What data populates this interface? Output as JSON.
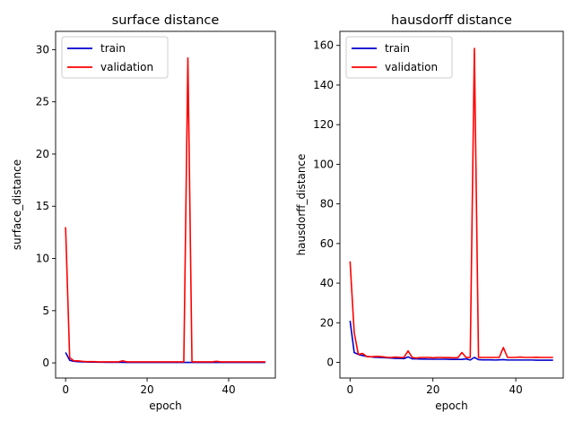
{
  "chart_data": [
    {
      "type": "line",
      "title": "surface distance",
      "xlabel": "epoch",
      "ylabel": "surface_distance",
      "xlim": [
        -2.45,
        51.45
      ],
      "ylim": [
        -1.45,
        31.75
      ],
      "xticks": [
        0,
        20,
        40
      ],
      "yticks": [
        0,
        5,
        10,
        15,
        20,
        25,
        30
      ],
      "legend": "top-left",
      "grid": false,
      "series": [
        {
          "name": "train",
          "color": "#0000cc",
          "x": [
            0,
            1,
            2,
            3,
            4,
            5,
            6,
            7,
            8,
            9,
            10,
            11,
            12,
            13,
            14,
            15,
            16,
            17,
            18,
            19,
            20,
            21,
            22,
            23,
            24,
            25,
            26,
            27,
            28,
            29,
            30,
            31,
            32,
            33,
            34,
            35,
            36,
            37,
            38,
            39,
            40,
            41,
            42,
            43,
            44,
            45,
            46,
            47,
            48,
            49
          ],
          "y": [
            1.0,
            0.25,
            0.15,
            0.12,
            0.1,
            0.09,
            0.08,
            0.08,
            0.07,
            0.07,
            0.06,
            0.06,
            0.06,
            0.06,
            0.06,
            0.05,
            0.05,
            0.05,
            0.05,
            0.05,
            0.05,
            0.05,
            0.05,
            0.05,
            0.05,
            0.05,
            0.05,
            0.05,
            0.05,
            0.05,
            0.05,
            0.05,
            0.05,
            0.05,
            0.05,
            0.05,
            0.05,
            0.05,
            0.05,
            0.05,
            0.05,
            0.05,
            0.05,
            0.05,
            0.05,
            0.05,
            0.05,
            0.05,
            0.05,
            0.05
          ]
        },
        {
          "name": "validation",
          "color": "#ff0000",
          "x": [
            0,
            1,
            2,
            3,
            4,
            5,
            6,
            7,
            8,
            9,
            10,
            11,
            12,
            13,
            14,
            15,
            16,
            17,
            18,
            19,
            20,
            21,
            22,
            23,
            24,
            25,
            26,
            27,
            28,
            29,
            30,
            31,
            32,
            33,
            34,
            35,
            36,
            37,
            38,
            39,
            40,
            41,
            42,
            43,
            44,
            45,
            46,
            47,
            48,
            49
          ],
          "y": [
            13.0,
            0.5,
            0.2,
            0.2,
            0.15,
            0.12,
            0.12,
            0.12,
            0.1,
            0.1,
            0.1,
            0.1,
            0.1,
            0.1,
            0.2,
            0.1,
            0.1,
            0.1,
            0.1,
            0.1,
            0.1,
            0.1,
            0.1,
            0.1,
            0.1,
            0.1,
            0.1,
            0.1,
            0.1,
            0.1,
            29.2,
            0.1,
            0.1,
            0.1,
            0.1,
            0.1,
            0.1,
            0.15,
            0.1,
            0.1,
            0.1,
            0.1,
            0.1,
            0.1,
            0.1,
            0.1,
            0.1,
            0.1,
            0.1,
            0.1
          ]
        }
      ]
    },
    {
      "type": "line",
      "title": "hausdorff distance",
      "xlabel": "epoch",
      "ylabel": "hausdorff_distance",
      "xlim": [
        -2.45,
        51.45
      ],
      "ylim": [
        -7.9,
        167.1
      ],
      "xticks": [
        0,
        20,
        40
      ],
      "yticks": [
        0,
        20,
        40,
        60,
        80,
        100,
        120,
        140,
        160
      ],
      "legend": "top-left",
      "grid": false,
      "series": [
        {
          "name": "train",
          "color": "#0000cc",
          "x": [
            0,
            1,
            2,
            3,
            4,
            5,
            6,
            7,
            8,
            9,
            10,
            11,
            12,
            13,
            14,
            15,
            16,
            17,
            18,
            19,
            20,
            21,
            22,
            23,
            24,
            25,
            26,
            27,
            28,
            29,
            30,
            31,
            32,
            33,
            34,
            35,
            36,
            37,
            38,
            39,
            40,
            41,
            42,
            43,
            44,
            45,
            46,
            47,
            48,
            49
          ],
          "y": [
            21.0,
            5.0,
            4.0,
            3.5,
            3.0,
            2.8,
            2.6,
            2.5,
            2.4,
            2.3,
            2.2,
            2.0,
            2.0,
            1.9,
            2.8,
            1.8,
            1.8,
            1.7,
            1.7,
            1.6,
            1.6,
            1.6,
            1.6,
            1.6,
            1.5,
            1.5,
            1.5,
            1.5,
            1.8,
            1.2,
            2.5,
            1.4,
            1.3,
            1.3,
            1.3,
            1.2,
            1.3,
            1.4,
            1.2,
            1.2,
            1.2,
            1.2,
            1.2,
            1.2,
            1.2,
            1.1,
            1.1,
            1.1,
            1.1,
            1.1
          ]
        },
        {
          "name": "validation",
          "color": "#ff0000",
          "x": [
            0,
            1,
            2,
            3,
            4,
            5,
            6,
            7,
            8,
            9,
            10,
            11,
            12,
            13,
            14,
            15,
            16,
            17,
            18,
            19,
            20,
            21,
            22,
            23,
            24,
            25,
            26,
            27,
            28,
            29,
            30,
            31,
            32,
            33,
            34,
            35,
            36,
            37,
            38,
            39,
            40,
            41,
            42,
            43,
            44,
            45,
            46,
            47,
            48,
            49
          ],
          "y": [
            51.0,
            15.0,
            4.0,
            4.5,
            3.0,
            2.8,
            3.0,
            3.0,
            2.8,
            2.5,
            2.5,
            2.7,
            2.5,
            2.5,
            5.8,
            2.5,
            2.2,
            2.5,
            2.5,
            2.5,
            2.3,
            2.5,
            2.5,
            2.4,
            2.4,
            2.3,
            2.4,
            5.0,
            2.5,
            2.5,
            158.5,
            2.5,
            2.5,
            2.5,
            2.5,
            2.5,
            2.5,
            7.5,
            2.5,
            2.5,
            2.5,
            2.7,
            2.5,
            2.5,
            2.5,
            2.6,
            2.5,
            2.5,
            2.5,
            2.5
          ]
        }
      ]
    }
  ]
}
